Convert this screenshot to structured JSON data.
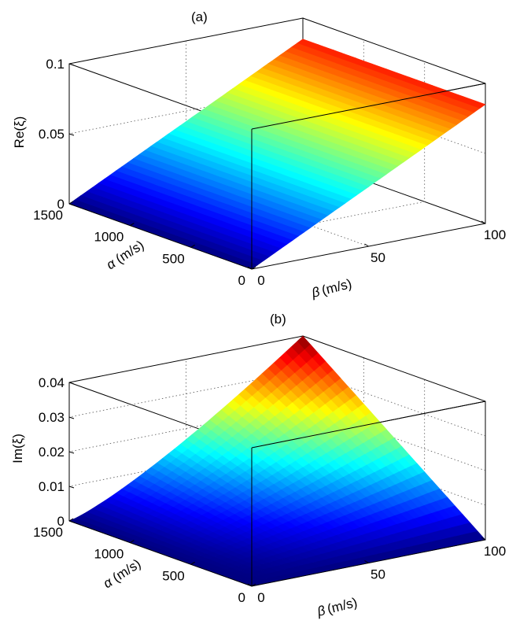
{
  "chart_data": [
    {
      "type": "surface",
      "title": "(a)",
      "xlabel_sym": "α",
      "xlabel_unit": "(m/s)",
      "ylabel_sym": "β",
      "ylabel_unit": "(m/s)",
      "zlabel": "Re(ξ)",
      "xlim": [
        0,
        1500
      ],
      "ylim": [
        0,
        100
      ],
      "zlim": [
        0,
        0.1
      ],
      "x_ticks": [
        "0",
        "500",
        "1000",
        "1500"
      ],
      "y_ticks": [
        "0",
        "50",
        "100"
      ],
      "z_ticks": [
        "0",
        "0.05",
        "0.1"
      ],
      "corner_values": {
        "beta_0": 0,
        "beta_100": 0.085
      },
      "colormap": "jet",
      "grid": true
    },
    {
      "type": "surface",
      "title": "(b)",
      "xlabel_sym": "α",
      "xlabel_unit": "(m/s)",
      "ylabel_sym": "β",
      "ylabel_unit": "(m/s)",
      "zlabel": "Im(ξ)",
      "xlim": [
        0,
        1500
      ],
      "ylim": [
        0,
        100
      ],
      "zlim": [
        0,
        0.04
      ],
      "x_ticks": [
        "0",
        "500",
        "1000",
        "1500"
      ],
      "y_ticks": [
        "0",
        "50",
        "100"
      ],
      "z_ticks": [
        "0",
        "0.01",
        "0.02",
        "0.03",
        "0.04"
      ],
      "corner_values": {
        "alpha0_beta0": 0,
        "alpha1500_beta0": 0,
        "alpha0_beta100": 0,
        "alpha1500_beta100": 0.04
      },
      "colormap": "jet",
      "grid": true
    }
  ]
}
